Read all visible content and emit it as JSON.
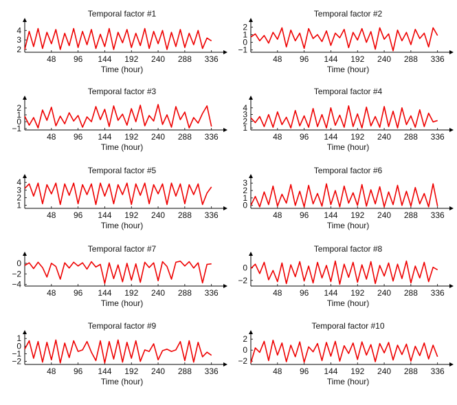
{
  "chart_data": [
    {
      "type": "line",
      "title": "Temporal factor #1",
      "xlabel": "Time (hour)",
      "ylabel": "",
      "xlim": [
        0,
        350
      ],
      "ylim": [
        1.7,
        4.6
      ],
      "xticks": [
        48,
        96,
        144,
        192,
        240,
        288,
        336
      ],
      "yticks": [
        2,
        3,
        4
      ],
      "color": "#ee0000",
      "series": [
        {
          "x": [
            0,
            8,
            16,
            24,
            32,
            40,
            48,
            56,
            64,
            72,
            80,
            88,
            96,
            104,
            112,
            120,
            128,
            136,
            144,
            152,
            160,
            168,
            176,
            184,
            192,
            200,
            208,
            216,
            224,
            232,
            240,
            248,
            256,
            264,
            272,
            280,
            288,
            296,
            304,
            312,
            320,
            328,
            336
          ],
          "values": [
            2.0,
            3.9,
            2.3,
            4.2,
            2.1,
            3.8,
            2.6,
            4.1,
            2.0,
            3.7,
            2.4,
            4.2,
            2.2,
            3.9,
            2.5,
            4.1,
            2.1,
            3.6,
            2.3,
            4.2,
            2.0,
            3.8,
            2.7,
            4.1,
            2.2,
            3.7,
            2.4,
            4.2,
            2.1,
            3.9,
            2.6,
            4.0,
            2.0,
            3.8,
            2.3,
            4.1,
            2.2,
            3.7,
            2.5,
            4.0,
            2.1,
            3.2,
            2.9
          ]
        }
      ]
    },
    {
      "type": "line",
      "title": "Temporal factor #2",
      "xlabel": "Time (hour)",
      "ylabel": "",
      "xlim": [
        0,
        350
      ],
      "ylim": [
        -1.3,
        2.3
      ],
      "xticks": [
        48,
        96,
        144,
        192,
        240,
        288,
        336
      ],
      "yticks": [
        -1,
        0,
        1,
        2
      ],
      "color": "#ee0000",
      "series": [
        {
          "x": [
            0,
            8,
            16,
            24,
            32,
            40,
            48,
            56,
            64,
            72,
            80,
            88,
            96,
            104,
            112,
            120,
            128,
            136,
            144,
            152,
            160,
            168,
            176,
            184,
            192,
            200,
            208,
            216,
            224,
            232,
            240,
            248,
            256,
            264,
            272,
            280,
            288,
            296,
            304,
            312,
            320,
            328,
            336
          ],
          "values": [
            0.7,
            1.1,
            0.2,
            0.9,
            -0.1,
            1.3,
            0.4,
            1.9,
            -0.6,
            1.6,
            0.2,
            1.2,
            -0.8,
            1.8,
            0.5,
            1.0,
            0.1,
            1.5,
            -0.4,
            1.2,
            0.6,
            1.7,
            -0.7,
            1.3,
            0.3,
            1.8,
            0.0,
            1.4,
            -0.9,
            1.9,
            0.4,
            1.1,
            -1.1,
            1.6,
            0.2,
            1.3,
            -0.3,
            1.7,
            0.5,
            1.2,
            -0.6,
            1.9,
            0.9
          ]
        }
      ]
    },
    {
      "type": "line",
      "title": "Temporal factor #3",
      "xlabel": "Time (hour)",
      "ylabel": "",
      "xlim": [
        0,
        350
      ],
      "ylim": [
        -1.2,
        2.8
      ],
      "xticks": [
        48,
        96,
        144,
        192,
        240,
        288,
        336
      ],
      "yticks": [
        -1,
        0,
        1,
        2
      ],
      "color": "#ee0000",
      "series": [
        {
          "x": [
            0,
            8,
            16,
            24,
            32,
            40,
            48,
            56,
            64,
            72,
            80,
            88,
            96,
            104,
            112,
            120,
            128,
            136,
            144,
            152,
            160,
            168,
            176,
            184,
            192,
            200,
            208,
            216,
            224,
            232,
            240,
            248,
            256,
            264,
            272,
            280,
            288,
            296,
            304,
            312,
            320,
            328,
            336
          ],
          "values": [
            0.8,
            -0.5,
            0.6,
            -0.9,
            1.7,
            0.2,
            2.1,
            -0.6,
            0.8,
            -0.3,
            1.3,
            0.1,
            0.9,
            -0.8,
            0.7,
            0.0,
            2.2,
            0.3,
            1.8,
            -0.7,
            2.3,
            0.2,
            1.1,
            -0.5,
            1.9,
            0.0,
            2.4,
            -0.6,
            0.9,
            0.1,
            2.5,
            -0.4,
            1.0,
            -0.8,
            2.2,
            0.3,
            1.4,
            -0.9,
            0.6,
            -0.2,
            1.2,
            2.3,
            -0.7
          ]
        }
      ]
    },
    {
      "type": "line",
      "title": "Temporal factor #4",
      "xlabel": "Time (hour)",
      "ylabel": "",
      "xlim": [
        0,
        350
      ],
      "ylim": [
        0.7,
        4.8
      ],
      "xticks": [
        48,
        96,
        144,
        192,
        240,
        288,
        336
      ],
      "yticks": [
        1,
        2,
        3,
        4
      ],
      "color": "#ee0000",
      "series": [
        {
          "x": [
            0,
            8,
            16,
            24,
            32,
            40,
            48,
            56,
            64,
            72,
            80,
            88,
            96,
            104,
            112,
            120,
            128,
            136,
            144,
            152,
            160,
            168,
            176,
            184,
            192,
            200,
            208,
            216,
            224,
            232,
            240,
            248,
            256,
            264,
            272,
            280,
            288,
            296,
            304,
            312,
            320,
            328,
            336
          ],
          "values": [
            2.5,
            1.8,
            2.7,
            1.2,
            3.0,
            1.1,
            3.4,
            1.5,
            2.6,
            1.0,
            3.6,
            1.3,
            2.8,
            1.1,
            3.9,
            1.2,
            3.0,
            1.0,
            4.0,
            1.4,
            2.9,
            1.1,
            4.3,
            1.2,
            3.1,
            1.0,
            4.1,
            1.3,
            2.7,
            1.1,
            4.2,
            1.2,
            3.5,
            1.0,
            4.0,
            1.5,
            2.8,
            1.1,
            3.7,
            1.2,
            3.2,
            1.9,
            2.1
          ]
        }
      ]
    },
    {
      "type": "line",
      "title": "Temporal factor #5",
      "xlabel": "Time (hour)",
      "ylabel": "",
      "xlim": [
        0,
        350
      ],
      "ylim": [
        0.6,
        4.2
      ],
      "xticks": [
        48,
        96,
        144,
        192,
        240,
        288,
        336
      ],
      "yticks": [
        1,
        2,
        3,
        4
      ],
      "color": "#ee0000",
      "series": [
        {
          "x": [
            0,
            8,
            16,
            24,
            32,
            40,
            48,
            56,
            64,
            72,
            80,
            88,
            96,
            104,
            112,
            120,
            128,
            136,
            144,
            152,
            160,
            168,
            176,
            184,
            192,
            200,
            208,
            216,
            224,
            232,
            240,
            248,
            256,
            264,
            272,
            280,
            288,
            296,
            304,
            312,
            320,
            328,
            336
          ],
          "values": [
            3.2,
            3.8,
            2.2,
            3.9,
            1.2,
            3.7,
            2.5,
            3.9,
            1.1,
            3.8,
            2.3,
            3.9,
            1.2,
            3.7,
            2.4,
            3.8,
            1.1,
            3.9,
            2.2,
            3.8,
            1.2,
            3.7,
            2.4,
            3.9,
            1.1,
            3.8,
            2.3,
            3.9,
            1.2,
            3.7,
            2.5,
            3.8,
            1.1,
            3.9,
            2.2,
            3.8,
            1.2,
            3.7,
            2.4,
            3.8,
            1.1,
            2.6,
            3.4
          ]
        }
      ]
    },
    {
      "type": "line",
      "title": "Temporal factor #6",
      "xlabel": "Time (hour)",
      "ylabel": "",
      "xlim": [
        0,
        350
      ],
      "ylim": [
        -0.4,
        3.3
      ],
      "xticks": [
        48,
        96,
        144,
        192,
        240,
        288,
        336
      ],
      "yticks": [
        0,
        1,
        2,
        3
      ],
      "color": "#ee0000",
      "series": [
        {
          "x": [
            0,
            8,
            16,
            24,
            32,
            40,
            48,
            56,
            64,
            72,
            80,
            88,
            96,
            104,
            112,
            120,
            128,
            136,
            144,
            152,
            160,
            168,
            176,
            184,
            192,
            200,
            208,
            216,
            224,
            232,
            240,
            248,
            256,
            264,
            272,
            280,
            288,
            296,
            304,
            312,
            320,
            328,
            336
          ],
          "values": [
            0.0,
            1.2,
            -0.2,
            1.8,
            0.1,
            2.6,
            -0.1,
            1.5,
            0.3,
            2.8,
            0.0,
            1.9,
            -0.2,
            2.7,
            0.2,
            1.6,
            -0.1,
            2.9,
            0.1,
            2.0,
            -0.2,
            2.6,
            0.3,
            1.7,
            0.0,
            2.8,
            -0.1,
            2.1,
            0.2,
            2.5,
            -0.2,
            1.8,
            0.1,
            2.7,
            0.0,
            1.9,
            -0.1,
            2.4,
            0.2,
            1.6,
            -0.2,
            2.9,
            -0.1
          ]
        }
      ]
    },
    {
      "type": "line",
      "title": "Temporal factor #7",
      "xlabel": "Time (hour)",
      "ylabel": "",
      "xlim": [
        0,
        350
      ],
      "ylim": [
        -4.3,
        0.9
      ],
      "xticks": [
        48,
        96,
        144,
        192,
        240,
        288,
        336
      ],
      "yticks": [
        -4,
        -2,
        0
      ],
      "color": "#ee0000",
      "series": [
        {
          "x": [
            0,
            8,
            16,
            24,
            32,
            40,
            48,
            56,
            64,
            72,
            80,
            88,
            96,
            104,
            112,
            120,
            128,
            136,
            144,
            152,
            160,
            168,
            176,
            184,
            192,
            200,
            208,
            216,
            224,
            232,
            240,
            248,
            256,
            264,
            272,
            280,
            288,
            296,
            304,
            312,
            320,
            328,
            336
          ],
          "values": [
            -0.4,
            0.1,
            -1.0,
            0.2,
            -0.8,
            -2.6,
            0.0,
            -0.6,
            -3.0,
            0.1,
            -0.9,
            0.2,
            -0.5,
            0.1,
            -1.1,
            0.3,
            -0.7,
            -0.2,
            -3.8,
            0.1,
            -2.9,
            -0.3,
            -3.5,
            0.0,
            -3.2,
            -0.1,
            -3.6,
            0.2,
            -0.8,
            0.1,
            -3.3,
            0.3,
            -0.6,
            -3.0,
            0.2,
            0.4,
            -0.5,
            0.3,
            -0.9,
            0.1,
            -3.7,
            -0.2,
            -0.1
          ]
        }
      ]
    },
    {
      "type": "line",
      "title": "Temporal factor #8",
      "xlabel": "Time (hour)",
      "ylabel": "",
      "xlim": [
        0,
        350
      ],
      "ylim": [
        -2.9,
        1.5
      ],
      "xticks": [
        48,
        96,
        144,
        192,
        240,
        288,
        336
      ],
      "yticks": [
        -2,
        0
      ],
      "color": "#ee0000",
      "series": [
        {
          "x": [
            0,
            8,
            16,
            24,
            32,
            40,
            48,
            56,
            64,
            72,
            80,
            88,
            96,
            104,
            112,
            120,
            128,
            136,
            144,
            152,
            160,
            168,
            176,
            184,
            192,
            200,
            208,
            216,
            224,
            232,
            240,
            248,
            256,
            264,
            272,
            280,
            288,
            296,
            304,
            312,
            320,
            328,
            336
          ],
          "values": [
            -0.1,
            0.6,
            -0.9,
            0.9,
            -1.9,
            -0.4,
            -2.2,
            0.8,
            -2.5,
            0.5,
            -1.4,
            1.0,
            -2.1,
            0.3,
            -2.4,
            0.9,
            -1.6,
            0.4,
            -2.2,
            1.1,
            -2.6,
            0.6,
            -1.5,
            0.9,
            -2.3,
            0.5,
            -1.8,
            1.0,
            -2.5,
            0.4,
            -1.3,
            0.8,
            -2.1,
            0.6,
            -1.7,
            1.1,
            -2.4,
            0.3,
            -1.6,
            0.9,
            -2.2,
            0.1,
            -0.3
          ]
        }
      ]
    },
    {
      "type": "line",
      "title": "Temporal factor #9",
      "xlabel": "Time (hour)",
      "ylabel": "",
      "xlim": [
        0,
        350
      ],
      "ylim": [
        -2.4,
        1.2
      ],
      "xticks": [
        48,
        96,
        144,
        192,
        240,
        288,
        336
      ],
      "yticks": [
        -2,
        -1,
        0,
        1
      ],
      "color": "#ee0000",
      "series": [
        {
          "x": [
            0,
            8,
            16,
            24,
            32,
            40,
            48,
            56,
            64,
            72,
            80,
            88,
            96,
            104,
            112,
            120,
            128,
            136,
            144,
            152,
            160,
            168,
            176,
            184,
            192,
            200,
            208,
            216,
            224,
            232,
            240,
            248,
            256,
            264,
            272,
            280,
            288,
            296,
            304,
            312,
            320,
            328,
            336
          ],
          "values": [
            -0.4,
            0.7,
            -1.6,
            0.6,
            -2.1,
            0.5,
            -1.8,
            0.8,
            -2.2,
            0.4,
            -1.5,
            0.7,
            -0.7,
            -0.5,
            0.6,
            -0.8,
            -1.9,
            0.7,
            -2.2,
            0.6,
            -1.7,
            0.8,
            -2.1,
            0.5,
            -1.6,
            0.7,
            -2.0,
            -0.5,
            -0.7,
            0.3,
            -1.8,
            -0.6,
            -0.4,
            -0.7,
            -0.5,
            0.6,
            -1.9,
            0.7,
            -2.1,
            0.5,
            -1.4,
            -0.8,
            -1.2
          ]
        }
      ]
    },
    {
      "type": "line",
      "title": "Temporal factor #10",
      "xlabel": "Time (hour)",
      "ylabel": "",
      "xlim": [
        0,
        350
      ],
      "ylim": [
        -2.6,
        2.4
      ],
      "xticks": [
        48,
        96,
        144,
        192,
        240,
        288,
        336
      ],
      "yticks": [
        -2,
        0,
        2
      ],
      "color": "#ee0000",
      "series": [
        {
          "x": [
            0,
            8,
            16,
            24,
            32,
            40,
            48,
            56,
            64,
            72,
            80,
            88,
            96,
            104,
            112,
            120,
            128,
            136,
            144,
            152,
            160,
            168,
            176,
            184,
            192,
            200,
            208,
            216,
            224,
            232,
            240,
            248,
            256,
            264,
            272,
            280,
            288,
            296,
            304,
            312,
            320,
            328,
            336
          ],
          "values": [
            -2.3,
            0.4,
            -0.4,
            1.6,
            -1.9,
            1.8,
            -0.9,
            1.3,
            -2.1,
            0.9,
            -1.2,
            1.5,
            -2.2,
            0.6,
            -0.3,
            1.2,
            -1.9,
            1.4,
            -1.1,
            1.6,
            -2.0,
            0.8,
            -0.6,
            1.3,
            -1.7,
            1.5,
            -0.9,
            1.0,
            -2.1,
            1.2,
            -0.5,
            1.4,
            -1.8,
            0.9,
            -0.8,
            1.1,
            -2.0,
            0.7,
            -1.0,
            1.3,
            -1.6,
            0.9,
            -1.2
          ]
        }
      ]
    }
  ]
}
